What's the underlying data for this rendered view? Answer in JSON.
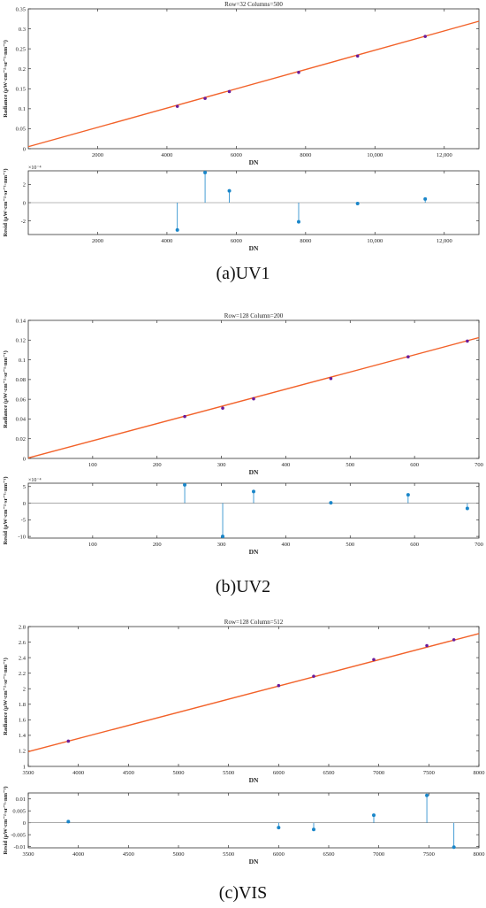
{
  "colors": {
    "fit_line": "#f2622a",
    "point": "#6a1b9a",
    "resid": "#1a86c9",
    "axis": "#333333",
    "zero": "#777777"
  },
  "captions": [
    "(a)UV1",
    "(b)UV2",
    "(c)VIS"
  ],
  "chart_data": [
    {
      "type": "line",
      "panel": "UV1-fit",
      "title": "Row=32 Columns=500",
      "xlabel": "DN",
      "ylabel": "Radiance (μW·cm⁻²·sr⁻¹·nm⁻¹)",
      "xlim": [
        0,
        13000
      ],
      "ylim": [
        0,
        0.35
      ],
      "xticks": [
        2000,
        4000,
        6000,
        8000,
        10000,
        12000
      ],
      "xticklabels": [
        "2000",
        "4000",
        "6000",
        "8000",
        "10,000",
        "12,000"
      ],
      "yticks": [
        0,
        0.05,
        0.1,
        0.15,
        0.2,
        0.25,
        0.3,
        0.35
      ],
      "yticklabels": [
        "0",
        "0.05",
        "0.1",
        "0.15",
        "0.2",
        "0.25",
        "0.3",
        "0.35"
      ],
      "line": {
        "x": [
          0,
          13000
        ],
        "y": [
          0.005,
          0.319
        ]
      },
      "points": {
        "x": [
          4300,
          5100,
          5800,
          7800,
          9500,
          11450
        ],
        "y": [
          0.106,
          0.126,
          0.143,
          0.191,
          0.232,
          0.281
        ]
      }
    },
    {
      "type": "stem",
      "panel": "UV1-resid",
      "xlabel": "DN",
      "ylabel": "Resid (μW·cm⁻²·sr⁻¹·nm⁻¹)",
      "exponent": "×10⁻⁴",
      "xlim": [
        0,
        13000
      ],
      "ylim": [
        -3.5,
        3.5
      ],
      "xticks": [
        2000,
        4000,
        6000,
        8000,
        10000,
        12000
      ],
      "xticklabels": [
        "2000",
        "4000",
        "6000",
        "8000",
        "10,000",
        "12,000"
      ],
      "yticks": [
        -2,
        0,
        2
      ],
      "yticklabels": [
        "-2",
        "0",
        "2"
      ],
      "x": [
        4300,
        5100,
        5800,
        7800,
        9500,
        11450
      ],
      "y": [
        -3.0,
        3.3,
        1.3,
        -2.1,
        -0.1,
        0.4
      ]
    },
    {
      "type": "line",
      "panel": "UV2-fit",
      "title": "Row=128 Column=200",
      "xlabel": "DN",
      "ylabel": "Radiance (μW·cm⁻²·sr⁻¹·nm⁻¹)",
      "xlim": [
        0,
        700
      ],
      "ylim": [
        0,
        0.14
      ],
      "xticks": [
        100,
        200,
        300,
        400,
        500,
        600,
        700
      ],
      "xticklabels": [
        "100",
        "200",
        "300",
        "400",
        "500",
        "600",
        "700"
      ],
      "yticks": [
        0,
        0.02,
        0.04,
        0.06,
        0.08,
        0.1,
        0.12,
        0.14
      ],
      "yticklabels": [
        "0",
        "0.02",
        "0.04",
        "0.06",
        "0.08",
        "0.1",
        "0.12",
        "0.14"
      ],
      "line": {
        "x": [
          0,
          700
        ],
        "y": [
          0.0005,
          0.1225
        ]
      },
      "points": {
        "x": [
          243,
          302,
          350,
          470,
          590,
          682
        ],
        "y": [
          0.0425,
          0.051,
          0.0605,
          0.081,
          0.103,
          0.119
        ]
      }
    },
    {
      "type": "stem",
      "panel": "UV2-resid",
      "xlabel": "DN",
      "ylabel": "Resid (μW·cm⁻²·sr⁻¹·nm⁻¹)",
      "exponent": "×10⁻⁴",
      "xlim": [
        0,
        700
      ],
      "ylim": [
        -10.5,
        6
      ],
      "xticks": [
        100,
        200,
        300,
        400,
        500,
        600,
        700
      ],
      "xticklabels": [
        "100",
        "200",
        "300",
        "400",
        "500",
        "600",
        "700"
      ],
      "yticks": [
        -10,
        -5,
        0,
        5
      ],
      "yticklabels": [
        "-10",
        "-5",
        "0",
        "5"
      ],
      "x": [
        243,
        302,
        350,
        470,
        590,
        682
      ],
      "y": [
        5.5,
        -10,
        3.5,
        0.1,
        2.5,
        -1.6
      ]
    },
    {
      "type": "line",
      "panel": "VIS-fit",
      "title": "Row=128 Column=512",
      "xlabel": "DN",
      "ylabel": "Radiance (μW·cm⁻²·sr⁻¹·nm⁻¹)",
      "xlim": [
        3500,
        8000
      ],
      "ylim": [
        1,
        2.8
      ],
      "xticks": [
        3500,
        4000,
        4500,
        5000,
        5500,
        6000,
        6500,
        7000,
        7500,
        8000
      ],
      "xticklabels": [
        "3500",
        "4000",
        "4500",
        "5000",
        "5500",
        "6000",
        "6500",
        "7000",
        "7500",
        "8000"
      ],
      "yticks": [
        1,
        1.2,
        1.4,
        1.6,
        1.8,
        2,
        2.2,
        2.4,
        2.6,
        2.8
      ],
      "yticklabels": [
        "1",
        "1.2",
        "1.4",
        "1.6",
        "1.8",
        "2",
        "2.2",
        "2.4",
        "2.6",
        "2.8"
      ],
      "line": {
        "x": [
          3500,
          8000
        ],
        "y": [
          1.19,
          2.71
        ]
      },
      "points": {
        "x": [
          3900,
          6000,
          6350,
          6950,
          7480,
          7750
        ],
        "y": [
          1.325,
          2.04,
          2.16,
          2.375,
          2.555,
          2.63
        ]
      }
    },
    {
      "type": "stem",
      "panel": "VIS-resid",
      "xlabel": "DN",
      "ylabel": "Resid (μW·cm⁻²·sr⁻¹·nm⁻¹)",
      "exponent": "",
      "xlim": [
        3500,
        8000
      ],
      "ylim": [
        -0.0105,
        0.0125
      ],
      "xticks": [
        3500,
        4000,
        4500,
        5000,
        5500,
        6000,
        6500,
        7000,
        7500,
        8000
      ],
      "xticklabels": [
        "3500",
        "4000",
        "4500",
        "5000",
        "5500",
        "6000",
        "6500",
        "7000",
        "7500",
        "8000"
      ],
      "yticks": [
        -0.01,
        -0.005,
        0,
        0.005,
        0.01
      ],
      "yticklabels": [
        "-0.01",
        "-0.005",
        "0",
        "0.005",
        "0.01"
      ],
      "x": [
        3900,
        6000,
        6350,
        6950,
        7480,
        7750
      ],
      "y": [
        0.0005,
        -0.002,
        -0.0028,
        0.0032,
        0.0115,
        -0.0102
      ]
    }
  ]
}
